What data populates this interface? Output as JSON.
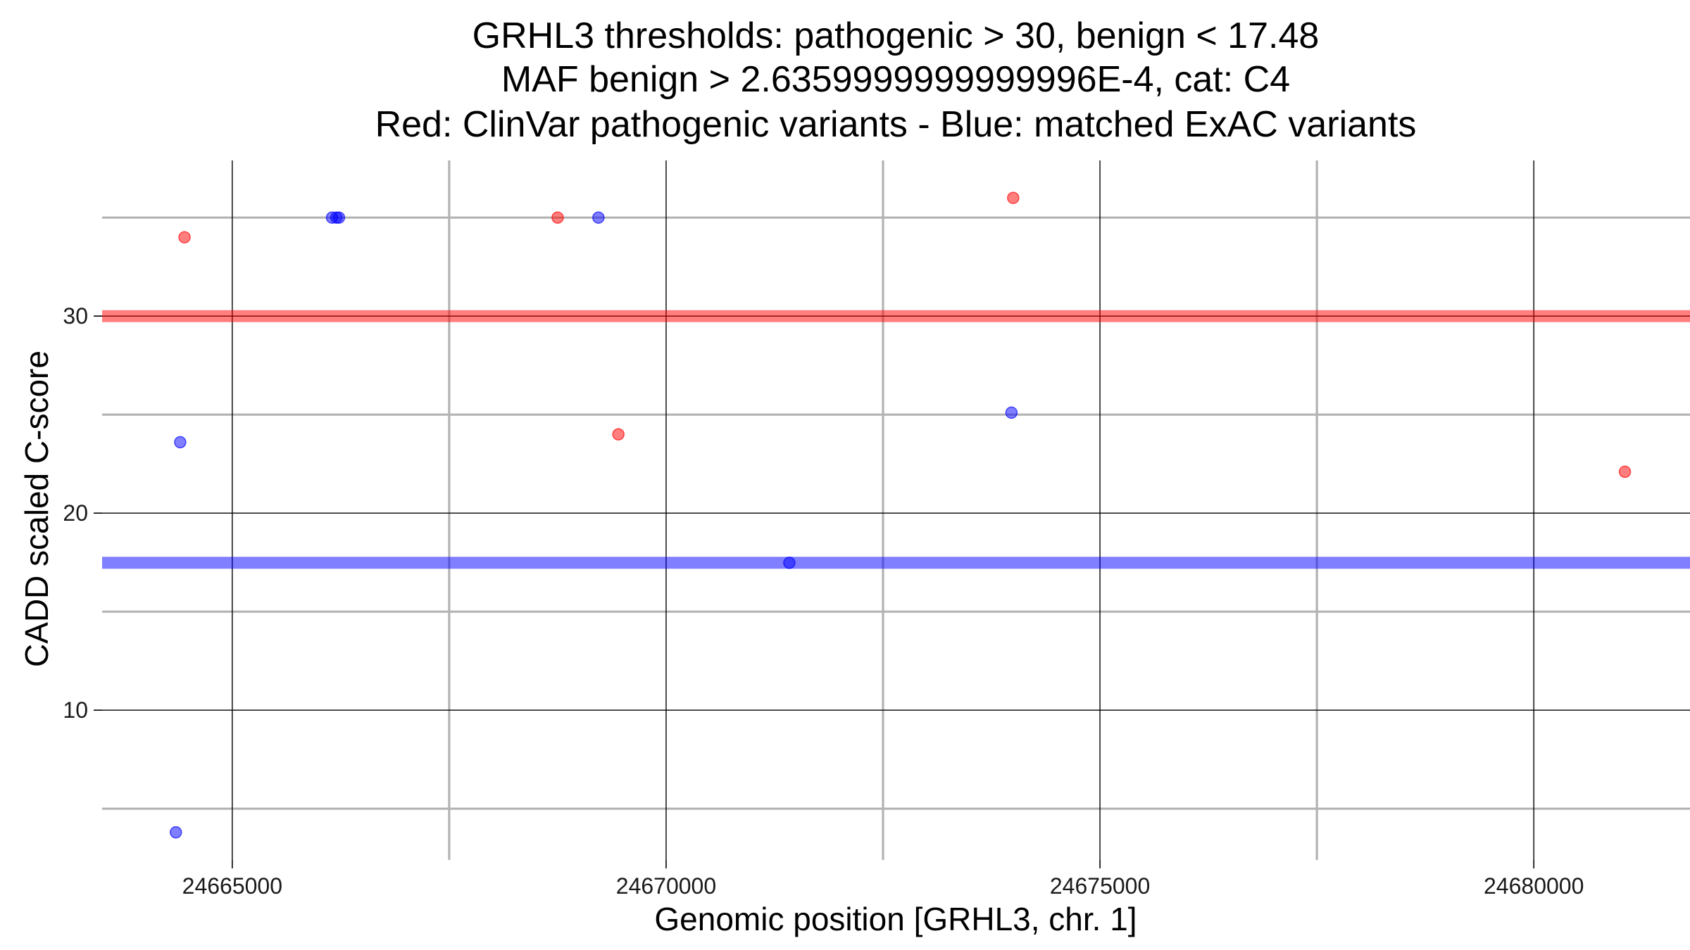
{
  "chart_data": {
    "type": "scatter",
    "title_lines": [
      "GRHL3 thresholds: pathogenic > 30, benign < 17.48",
      "MAF benign > 2.6359999999999996E-4, cat: C4",
      "Red: ClinVar pathogenic variants - Blue: matched ExAC variants"
    ],
    "xlabel": "Genomic position [GRHL3, chr. 1]",
    "ylabel": "CADD scaled C-score",
    "xlim": [
      24663500,
      24681800
    ],
    "ylim": [
      2.4,
      37.9
    ],
    "x_major_ticks": [
      24665000,
      24670000,
      24675000,
      24680000
    ],
    "x_tick_labels": [
      "24665000",
      "24670000",
      "24675000",
      "24680000"
    ],
    "x_minor_ticks": [
      24667500,
      24672500,
      24677500
    ],
    "y_major_ticks": [
      10,
      20,
      30
    ],
    "y_tick_labels": [
      "10",
      "20",
      "30"
    ],
    "y_minor_ticks": [
      5,
      15,
      25,
      35
    ],
    "thresholds": {
      "pathogenic": {
        "value": 30,
        "color": "#ff0000"
      },
      "benign": {
        "value": 17.48,
        "color": "#0000ff"
      }
    },
    "series": [
      {
        "name": "ClinVar pathogenic variants",
        "color": "#ff0000",
        "points": [
          {
            "x": 24664450,
            "y": 34.0
          },
          {
            "x": 24668750,
            "y": 35.0
          },
          {
            "x": 24669450,
            "y": 24.0
          },
          {
            "x": 24674000,
            "y": 36.0
          },
          {
            "x": 24681050,
            "y": 22.1
          }
        ]
      },
      {
        "name": "matched ExAC variants",
        "color": "#0000ff",
        "points": [
          {
            "x": 24664400,
            "y": 23.6
          },
          {
            "x": 24664350,
            "y": 3.8
          },
          {
            "x": 24666150,
            "y": 35.0
          },
          {
            "x": 24666200,
            "y": 35.0
          },
          {
            "x": 24666230,
            "y": 35.0
          },
          {
            "x": 24669220,
            "y": 35.0
          },
          {
            "x": 24671420,
            "y": 17.48
          },
          {
            "x": 24673980,
            "y": 25.1
          }
        ]
      }
    ]
  }
}
